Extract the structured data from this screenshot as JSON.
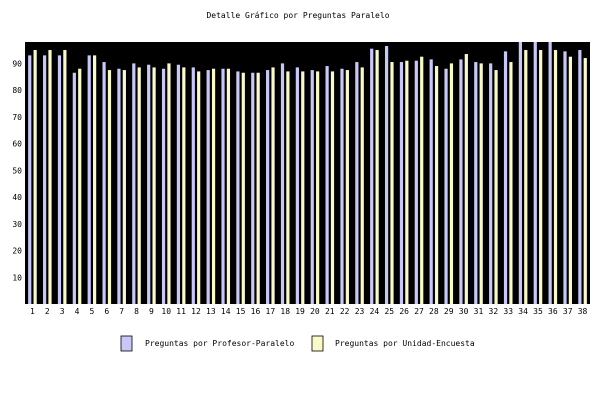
{
  "chart_data": {
    "type": "bar",
    "title": "Detalle Gráfico por Preguntas Paralelo",
    "xlabel": "",
    "ylabel": "",
    "ylim": [
      0,
      98
    ],
    "yticks": [
      10,
      20,
      30,
      40,
      50,
      60,
      70,
      80,
      90
    ],
    "grid": false,
    "legend_position": "bottom",
    "categories": [
      "1",
      "2",
      "3",
      "4",
      "5",
      "6",
      "7",
      "8",
      "9",
      "10",
      "11",
      "12",
      "13",
      "14",
      "15",
      "16",
      "17",
      "18",
      "19",
      "20",
      "21",
      "22",
      "23",
      "24",
      "25",
      "26",
      "27",
      "28",
      "29",
      "30",
      "31",
      "32",
      "33",
      "34",
      "35",
      "36",
      "37",
      "38"
    ],
    "series": [
      {
        "name": "Preguntas por Profesor-Paralelo",
        "color": "#c8c8f8",
        "values": [
          93,
          93,
          93,
          86.5,
          93,
          90.5,
          88,
          90,
          89.5,
          88,
          89.5,
          88.5,
          87.5,
          88,
          87,
          86.5,
          87.5,
          90,
          88.5,
          87.5,
          89,
          88,
          90.5,
          95.5,
          96.5,
          90.5,
          91,
          91.5,
          88,
          91.5,
          90.5,
          90,
          94.5,
          98,
          98,
          98,
          94.5,
          95
        ]
      },
      {
        "name": "Preguntas por Unidad-Encuesta",
        "color": "#fafac8",
        "values": [
          95,
          95,
          95,
          88,
          93,
          87.5,
          87.5,
          88.5,
          88.5,
          90,
          88.5,
          87,
          88,
          88,
          86.5,
          86.5,
          88.5,
          87,
          87,
          87,
          87,
          87.5,
          88.5,
          95,
          90.5,
          91,
          92.5,
          89,
          90,
          93.5,
          90,
          87.5,
          90.5,
          95,
          95,
          95,
          92.5,
          92
        ]
      }
    ]
  }
}
